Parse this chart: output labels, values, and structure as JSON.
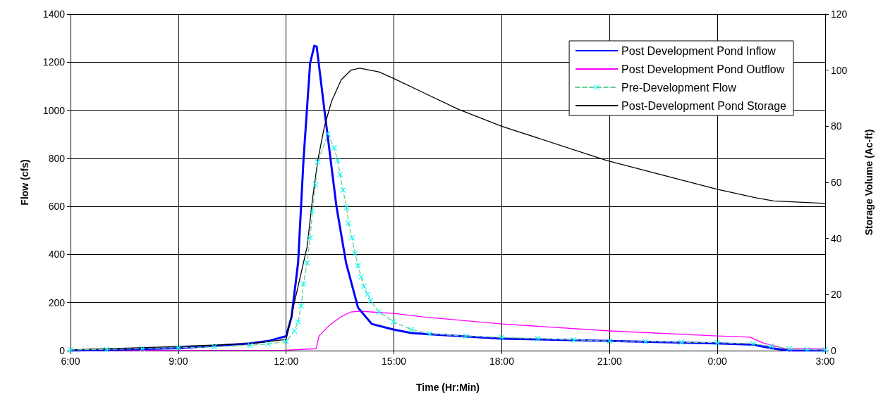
{
  "chart_data": {
    "type": "line",
    "xlabel": "Time (Hr:Min)",
    "ylabel": "Flow (cfs)",
    "y2label": "Storage Volume (Ac-ft)",
    "xlim": [
      "--01-01T06:00",
      "--01-02T03:00"
    ],
    "xticks": [
      {
        "value": "--01-01T06:00",
        "label": "6:00"
      },
      {
        "value": "--01-01T09:00",
        "label": "9:00"
      },
      {
        "value": "--01-01T12:00",
        "label": "12:00"
      },
      {
        "value": "--01-01T15:00",
        "label": "15:00"
      },
      {
        "value": "--01-01T18:00",
        "label": "18:00"
      },
      {
        "value": "--01-01T21:00",
        "label": "21:00"
      },
      {
        "value": "--01-02T00:00",
        "label": "0:00"
      },
      {
        "value": "--01-02T03:00",
        "label": "3:00"
      }
    ],
    "ylim": [
      0,
      1400
    ],
    "yticks": [
      0,
      200,
      400,
      600,
      800,
      1000,
      1200,
      1400
    ],
    "y2lim": [
      0,
      120
    ],
    "y2ticks": [
      0,
      20,
      40,
      60,
      80,
      100,
      120
    ],
    "grid": true,
    "legend": "top right",
    "series": [
      {
        "name": "Post Development Pond Inflow",
        "color": "#0000ff",
        "marker": "none",
        "line_style": "solid",
        "x": [
          "--01-01T06:00",
          "--01-01T09:00",
          "--01-01T11:00",
          "--01-01T11:30",
          "--01-01T12:00",
          "--01-01T12:09",
          "--01-01T12:20",
          "--01-01T12:29",
          "--01-01T12:40",
          "--01-01T12:47",
          "--01-01T12:51",
          "--01-01T13:04",
          "--01-01T13:24",
          "--01-01T13:40",
          "--01-01T14:00",
          "--01-01T14:23",
          "--01-01T14:59",
          "--01-01T15:29",
          "--01-01T16:00",
          "--01-01T18:00",
          "--01-01T21:00",
          "--01-02T00:00",
          "--01-02T01:00",
          "--01-02T01:30",
          "--01-02T02:00",
          "--01-02T03:00"
        ],
        "values": [
          0,
          10,
          30,
          40,
          60,
          140,
          366,
          794,
          1195,
          1268,
          1265,
          999,
          600,
          366,
          179,
          111,
          88,
          73,
          68,
          50,
          40,
          30,
          25,
          10,
          0,
          0
        ]
      },
      {
        "name": "Post Development Pond Outflow",
        "color": "#ff00ff",
        "marker": "none",
        "line_style": "solid",
        "x": [
          "--01-01T06:00",
          "--01-01T12:00",
          "--01-01T12:50",
          "--01-01T12:55",
          "--01-01T13:12",
          "--01-01T13:31",
          "--01-01T13:48",
          "--01-01T14:03",
          "--01-01T15:00",
          "--01-01T15:49",
          "--01-01T18:00",
          "--01-01T21:00",
          "--01-02T00:00",
          "--01-02T00:55",
          "--01-02T01:16",
          "--01-02T01:52",
          "--01-02T03:00"
        ],
        "values": [
          0,
          2,
          8,
          61,
          105,
          140,
          161,
          164,
          155,
          140,
          111,
          82,
          61,
          56,
          32,
          9,
          7
        ]
      },
      {
        "name": "Pre-Development Flow",
        "color": "#00ffff",
        "marker": "cross",
        "line_style": "dashed",
        "x": [
          "--01-01T06:00",
          "--01-01T07:00",
          "--01-01T08:00",
          "--01-01T09:00",
          "--01-01T10:00",
          "--01-01T11:00",
          "--01-01T11:30",
          "--01-01T12:00",
          "--01-01T12:14",
          "--01-01T12:20",
          "--01-01T12:25",
          "--01-01T12:29",
          "--01-01T12:35",
          "--01-01T12:40",
          "--01-01T12:44",
          "--01-01T12:49",
          "--01-01T12:53",
          "--01-01T13:10",
          "--01-01T13:20",
          "--01-01T13:26",
          "--01-01T13:30",
          "--01-01T13:35",
          "--01-01T13:41",
          "--01-01T13:44",
          "--01-01T13:50",
          "--01-01T13:55",
          "--01-01T14:00",
          "--01-01T14:05",
          "--01-01T14:10",
          "--01-01T14:16",
          "--01-01T14:21",
          "--01-01T14:35",
          "--01-01T14:59",
          "--01-01T15:29",
          "--01-01T16:00",
          "--01-01T17:00",
          "--01-01T18:00",
          "--01-01T19:00",
          "--01-01T20:00",
          "--01-01T21:00",
          "--01-01T22:00",
          "--01-01T23:00",
          "--01-02T00:00",
          "--01-02T01:00",
          "--01-02T01:30",
          "--01-02T02:00",
          "--01-02T02:30",
          "--01-02T03:00"
        ],
        "values": [
          3,
          5,
          8,
          12,
          16,
          22,
          28,
          38,
          82,
          120,
          185,
          278,
          366,
          469,
          580,
          691,
          785,
          902,
          844,
          791,
          732,
          668,
          595,
          530,
          469,
          404,
          354,
          307,
          267,
          234,
          208,
          161,
          120,
          88,
          70,
          60,
          55,
          50,
          45,
          40,
          38,
          35,
          33,
          28,
          18,
          8,
          4,
          3
        ]
      },
      {
        "name": "Post-Development Pond Storage",
        "color": "#000000",
        "marker": "none",
        "line_style": "solid",
        "axis": "y2",
        "x": [
          "--01-01T06:00",
          "--01-01T09:00",
          "--01-01T11:00",
          "--01-01T12:00",
          "--01-01T12:20",
          "--01-01T12:35",
          "--01-01T12:44",
          "--01-01T12:53",
          "--01-01T13:04",
          "--01-01T13:16",
          "--01-01T13:32",
          "--01-01T13:48",
          "--01-01T14:03",
          "--01-01T14:35",
          "--01-01T15:00",
          "--01-01T15:49",
          "--01-01T16:48",
          "--01-01T18:00",
          "--01-01T20:55",
          "--01-02T00:00",
          "--01-02T01:04",
          "--01-02T01:34",
          "--01-02T03:00"
        ],
        "values": [
          0.3,
          1.5,
          2.5,
          4,
          23,
          37,
          54,
          68,
          80,
          89,
          96.6,
          100,
          100.7,
          99.4,
          97,
          92,
          86,
          80,
          67.8,
          57.5,
          54.5,
          53.4,
          52.5
        ]
      }
    ]
  }
}
